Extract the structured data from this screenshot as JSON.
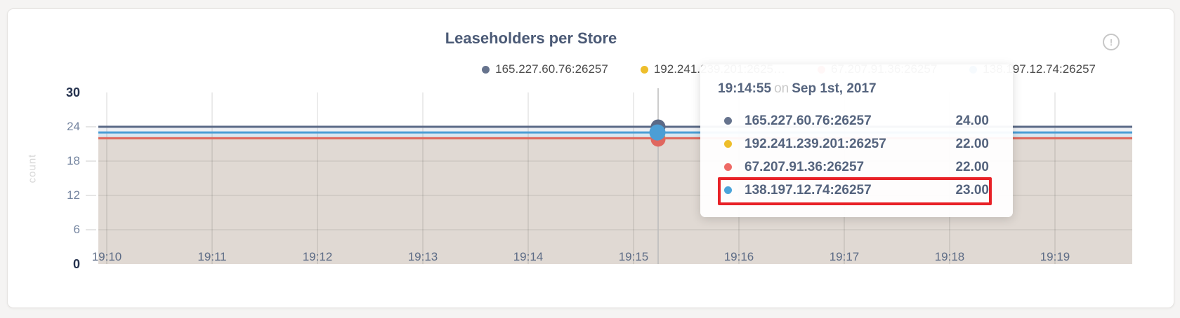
{
  "card": {
    "title": "Leaseholders per Store",
    "info_icon": "!"
  },
  "legend": {
    "items": [
      {
        "label": "165.227.60.76:26257",
        "color": "#66738d"
      },
      {
        "label": "192.241.239.201:2625…",
        "color": "#eebe2b"
      },
      {
        "label": "67.207.91.36:26257",
        "color": "#ee6a66"
      },
      {
        "label": "138.197.12.74:26257",
        "color": "#4aa4da"
      }
    ]
  },
  "chart_data": {
    "type": "line",
    "title": "Leaseholders per Store",
    "ylabel": "count",
    "xlabel": "",
    "ylim": [
      0,
      30
    ],
    "yticks": [
      0,
      6,
      12,
      18,
      24,
      30
    ],
    "ytick_minmax": [
      0,
      30
    ],
    "xticks": [
      "19:10",
      "19:11",
      "19:12",
      "19:13",
      "19:14",
      "19:15",
      "19:16",
      "19:17",
      "19:18",
      "19:19"
    ],
    "grid": true,
    "legend_position": "top-right",
    "series": [
      {
        "name": "165.227.60.76:26257",
        "color": "#5b6a87",
        "value": 24
      },
      {
        "name": "192.241.239.201:26257",
        "color": "#eebe2b",
        "value": 22
      },
      {
        "name": "67.207.91.36:26257",
        "color": "#e0675f",
        "value": 22
      },
      {
        "name": "138.197.12.74:26257",
        "color": "#4c9ed5",
        "value": 23
      }
    ],
    "note": "All four series are flat/constant across the 19:10-19:19 window",
    "band_fill_colors": [
      "#edeff3",
      "#d9e6f1",
      "#e0d9d3"
    ],
    "hover": {
      "time": "19:14:55",
      "values": [
        24,
        23,
        22,
        22
      ]
    }
  },
  "tooltip": {
    "time": "19:14:55",
    "conj": "on",
    "date": "Sep 1st, 2017",
    "rows": [
      {
        "color": "#66738d",
        "label": "165.227.60.76:26257",
        "value": "24.00"
      },
      {
        "color": "#eebe2b",
        "label": "192.241.239.201:26257",
        "value": "22.00"
      },
      {
        "color": "#ee6a66",
        "label": "67.207.91.36:26257",
        "value": "22.00"
      },
      {
        "color": "#4aa4da",
        "label": "138.197.12.74:26257",
        "value": "23.00"
      }
    ],
    "highlighted_row": 3,
    "highlight_color": "#e82127"
  }
}
